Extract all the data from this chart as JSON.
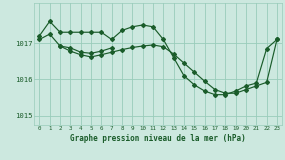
{
  "bg_color": "#cce8df",
  "grid_color": "#99ccbb",
  "line_color": "#1a5c2a",
  "marker_color": "#1a5c2a",
  "ylabel_ticks": [
    1015,
    1016,
    1017
  ],
  "xlabel_ticks": [
    0,
    1,
    2,
    3,
    4,
    5,
    6,
    7,
    8,
    9,
    10,
    11,
    12,
    13,
    14,
    15,
    16,
    17,
    18,
    19,
    20,
    21,
    22,
    23
  ],
  "xlabel": "Graphe pression niveau de la mer (hPa)",
  "series1_x": [
    0,
    1,
    2,
    3,
    4,
    5,
    6,
    7,
    8,
    9,
    10,
    11,
    12,
    13,
    14,
    15,
    16,
    17,
    18,
    19,
    20,
    21,
    22,
    23
  ],
  "series1_y": [
    1017.2,
    1017.6,
    1017.3,
    1017.3,
    1017.3,
    1017.3,
    1017.3,
    1017.1,
    1017.35,
    1017.45,
    1017.5,
    1017.45,
    1017.1,
    1016.6,
    1016.1,
    1015.85,
    1015.68,
    1015.58,
    1015.58,
    1015.68,
    1015.82,
    1015.9,
    1016.85,
    1017.1
  ],
  "series2_x": [
    0,
    1,
    2,
    3,
    4,
    5,
    6,
    7,
    8,
    9,
    10,
    11,
    12,
    13,
    14,
    15,
    16,
    17,
    18,
    19,
    20,
    21,
    22,
    23
  ],
  "series2_y": [
    1017.1,
    1017.25,
    1016.92,
    1016.78,
    1016.68,
    1016.62,
    1016.68,
    1016.75,
    1016.82,
    1016.88,
    1016.92,
    1016.95,
    1016.9,
    1016.7,
    1016.45,
    1016.2,
    1015.95,
    1015.72,
    1015.62,
    1015.62,
    1015.72,
    1015.82,
    1015.92,
    1017.1
  ],
  "series3_x": [
    2,
    3,
    4,
    5,
    6,
    7
  ],
  "series3_y": [
    1016.92,
    1016.87,
    1016.75,
    1016.72,
    1016.78,
    1016.87
  ],
  "ylim": [
    1014.75,
    1018.1
  ],
  "xlim": [
    -0.5,
    23.5
  ]
}
